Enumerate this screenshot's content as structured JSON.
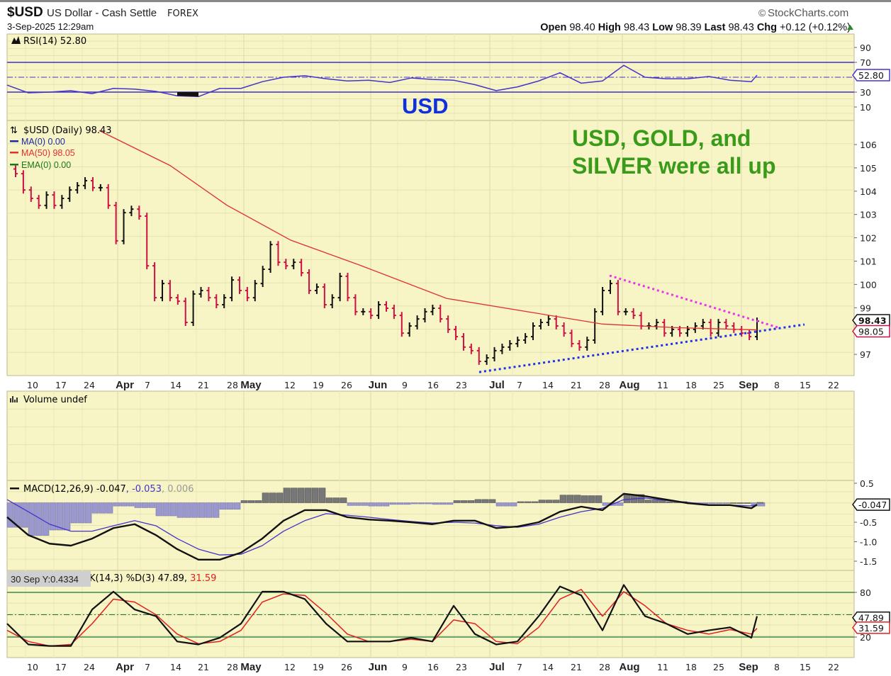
{
  "header": {
    "symbol": "$USD",
    "name": "US Dollar - Cash Settle",
    "exchange": "FOREX",
    "datetime": "3-Sep-2025 12:29am",
    "brand": "StockCharts.com",
    "open_label": "Open",
    "open": "98.40",
    "high_label": "High",
    "high": "98.43",
    "low_label": "Low",
    "low": "98.39",
    "last_label": "Last",
    "last": "98.43",
    "chg_label": "Chg",
    "chg": "+0.12 (+0.12%)"
  },
  "annotations": {
    "usd": "USD",
    "note_line1": "USD, GOLD, and",
    "note_line2": "SILVER were all up"
  },
  "tooltip": "30 Sep Y:0.4334",
  "colors": {
    "panel_bg": "#f7f4c6",
    "up": "#111111",
    "down": "#cc1144",
    "ma50": "#e03030",
    "rsi": "#4433cc",
    "trend_support": "#2233ee",
    "trend_resistance": "#ee33ee",
    "note": "#3a9a1a",
    "usd_label": "#1030e0"
  },
  "chart_data": [
    {
      "type": "line",
      "title": "RSI(14) 52.80",
      "legend": "RSI(14) 52.80",
      "last_tag": "52.80",
      "ylim": [
        0,
        100
      ],
      "ticks": [
        "90",
        "70",
        "30",
        "10"
      ],
      "levels": [
        70,
        50,
        30
      ],
      "values": [
        39.5,
        29,
        30,
        31.9,
        28,
        35,
        34,
        31,
        25,
        24,
        35,
        35,
        44,
        50,
        52,
        48,
        45,
        46,
        43,
        49,
        47,
        46,
        40,
        32,
        37,
        45,
        56,
        42,
        45,
        66,
        50,
        48,
        48,
        51,
        46,
        44,
        52.8
      ]
    },
    {
      "type": "ohlc",
      "title": "$USD (Daily) 98.43",
      "legend": {
        "main": "$USD (Daily) 98.43",
        "ma0": "MA(0) 0.00",
        "ma50": "MA(50) 98.05",
        "ema0": "EMA(0) 0.00"
      },
      "last_tag": "98.43",
      "ma_tag": "98.05",
      "ylim": [
        96,
        107
      ],
      "ticks": [
        "106",
        "105",
        "104",
        "103",
        "102",
        "101",
        "100",
        "99",
        "97"
      ],
      "closes": [
        104.75,
        104.05,
        103.69,
        103.39,
        103.84,
        103.39,
        103.69,
        104.05,
        104.24,
        104.45,
        104.15,
        104.15,
        103.39,
        101.87,
        103.08,
        103.23,
        102.93,
        100.8,
        99.43,
        100.04,
        99.43,
        99.28,
        98.37,
        99.59,
        99.74,
        99.43,
        99.13,
        99.43,
        100.19,
        99.74,
        99.43,
        100.04,
        100.65,
        101.71,
        100.95,
        100.8,
        100.95,
        100.5,
        99.74,
        99.89,
        99.13,
        99.43,
        100.35,
        99.43,
        98.83,
        98.83,
        98.67,
        99.13,
        98.98,
        98.67,
        97.91,
        98.22,
        98.52,
        98.83,
        98.98,
        98.52,
        98.07,
        97.76,
        97.31,
        97.16,
        96.7,
        96.85,
        97.16,
        97.31,
        97.46,
        97.61,
        97.76,
        98.22,
        98.37,
        98.52,
        98.22,
        97.91,
        97.46,
        97.31,
        97.61,
        98.83,
        99.74,
        100.04,
        98.83,
        98.83,
        98.67,
        98.22,
        98.22,
        98.37,
        97.91,
        98.07,
        97.91,
        98.07,
        98.22,
        98.37,
        97.91,
        98.37,
        98.22,
        98.07,
        97.91,
        97.76,
        98.43
      ],
      "ma50": [
        106.6,
        105.1,
        103.4,
        101.9,
        100.8,
        99.4,
        98.8,
        98.3,
        98.15,
        98.05
      ],
      "trendlines": {
        "support": [
          96.24,
          98.28
        ],
        "resistance": [
          100.38,
          98.13
        ]
      }
    },
    {
      "type": "bar",
      "title": "Volume undef",
      "legend": "Volume undef"
    },
    {
      "type": "line",
      "title": "MACD(12,26,9)",
      "legend": {
        "name": "MACD(12,26,9)",
        "macd": "-0.047",
        "signal": "-0.053",
        "hist": "0.006"
      },
      "last_tag": "-0.047",
      "ylim": [
        -1.7,
        0.55
      ],
      "ticks": [
        "0.5",
        "-0.5",
        "-1.0",
        "-1.5"
      ],
      "macd": [
        -0.37,
        -0.83,
        -1.05,
        -1.1,
        -0.92,
        -0.65,
        -0.55,
        -0.83,
        -1.19,
        -1.46,
        -1.46,
        -1.28,
        -0.92,
        -0.46,
        -0.19,
        -0.19,
        -0.37,
        -0.43,
        -0.46,
        -0.5,
        -0.55,
        -0.46,
        -0.46,
        -0.65,
        -0.61,
        -0.5,
        -0.23,
        -0.1,
        -0.19,
        0.23,
        0.17,
        0.08,
        -0.01,
        -0.06,
        -0.06,
        -0.14,
        -0.047
      ],
      "signal": [
        0.08,
        -0.23,
        -0.55,
        -0.73,
        -0.73,
        -0.59,
        -0.46,
        -0.59,
        -0.92,
        -1.19,
        -1.34,
        -1.32,
        -1.1,
        -0.73,
        -0.46,
        -0.28,
        -0.32,
        -0.37,
        -0.43,
        -0.48,
        -0.52,
        -0.5,
        -0.52,
        -0.59,
        -0.63,
        -0.55,
        -0.37,
        -0.23,
        -0.14,
        0.08,
        0.12,
        0.06,
        0.01,
        -0.05,
        -0.06,
        -0.08,
        -0.053
      ]
    },
    {
      "type": "line",
      "title": "Slow STO %K(14,3) %D(3)",
      "legend": {
        "name": "K(14,3) %D(3)",
        "k": "47.89,",
        "d": "31.59"
      },
      "k_tag": "47.89",
      "d_tag": "31.59",
      "ylim": [
        0,
        100
      ],
      "ticks": [
        "80",
        "20"
      ],
      "k": [
        38,
        10,
        8,
        8,
        57,
        81,
        57,
        48,
        14,
        10,
        19,
        38,
        81,
        81,
        71,
        38,
        14,
        14,
        14,
        19,
        14,
        62,
        24,
        10,
        14,
        48,
        88,
        76,
        29,
        90,
        48,
        38,
        24,
        29,
        33,
        19,
        47.89
      ],
      "d": [
        29,
        14,
        8,
        10,
        38,
        71,
        67,
        50,
        24,
        11,
        14,
        29,
        67,
        78,
        76,
        52,
        24,
        14,
        14,
        17,
        14,
        43,
        38,
        14,
        11,
        33,
        71,
        84,
        48,
        81,
        62,
        38,
        29,
        24,
        30,
        24,
        31.59
      ]
    }
  ],
  "x_axis": {
    "labels": [
      "10",
      "17",
      "24",
      "Apr",
      "7",
      "14",
      "21",
      "28",
      "May",
      "12",
      "19",
      "26",
      "Jun",
      "9",
      "16",
      "23",
      "Jul",
      "7",
      "14",
      "21",
      "28",
      "Aug",
      "11",
      "18",
      "25",
      "Sep",
      "8",
      "15",
      "22"
    ]
  }
}
